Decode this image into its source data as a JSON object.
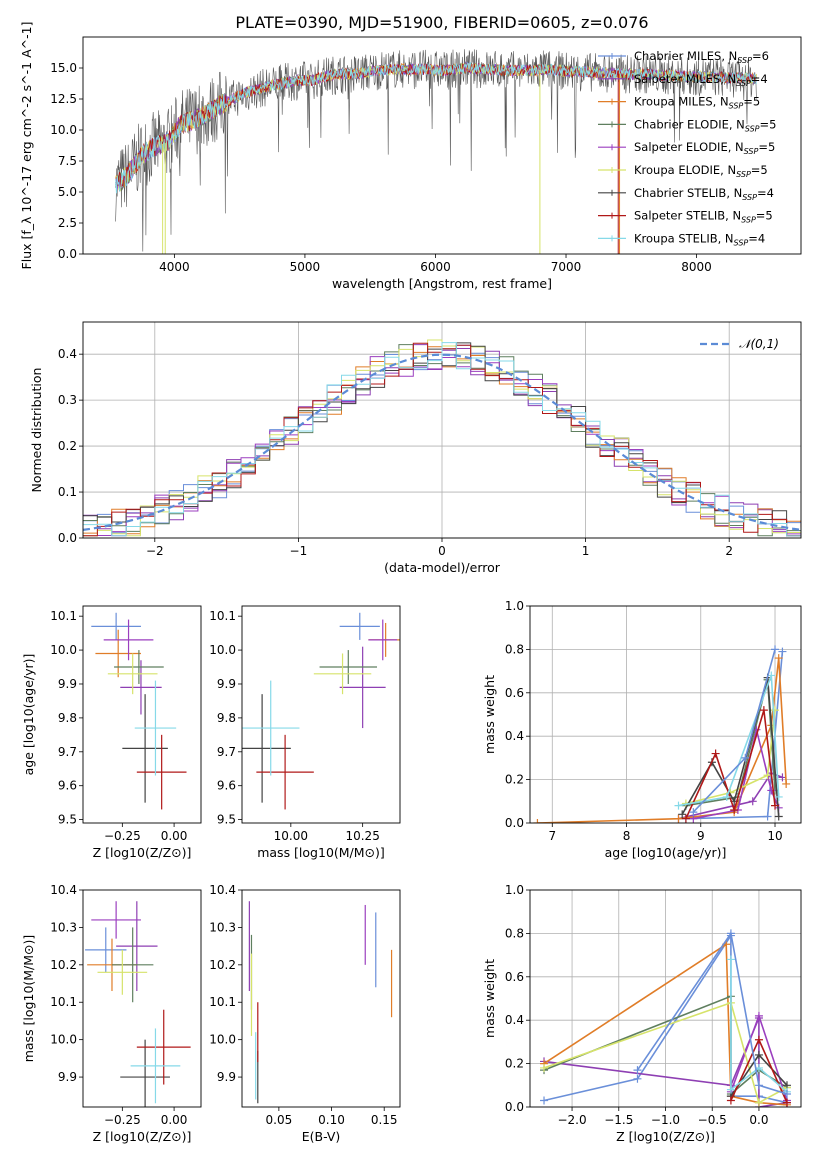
{
  "figure": {
    "title": "PLATE=0390, MJD=51900, FIBERID=0605, z=0.076"
  },
  "series": [
    {
      "name": "Chabrier MILES, N_SSP=6",
      "color": "#6a8fd9"
    },
    {
      "name": "Salpeter MILES, N_SSP=4",
      "color": "#8e3fb3"
    },
    {
      "name": "Kroupa MILES, N_SSP=5",
      "color": "#e07d28"
    },
    {
      "name": "Chabrier ELODIE, N_SSP=5",
      "color": "#5f7f5f"
    },
    {
      "name": "Salpeter ELODIE, N_SSP=5",
      "color": "#9b3fbf"
    },
    {
      "name": "Kroupa ELODIE, N_SSP=5",
      "color": "#d6e36a"
    },
    {
      "name": "Chabrier STELIB, N_SSP=4",
      "color": "#444444"
    },
    {
      "name": "Salpeter STELIB, N_SSP=5",
      "color": "#b01818"
    },
    {
      "name": "Kroupa STELIB, N_SSP=4",
      "color": "#86d9e8"
    }
  ],
  "chart_data": [
    {
      "id": "spectrum",
      "type": "line",
      "xlabel": "wavelength [Angstrom, rest frame]",
      "ylabel": "Flux [f_λ 10^-17 erg cm^-2 s^-1 A^-1]",
      "xlim": [
        3300,
        8800
      ],
      "ylim": [
        0,
        17.5
      ],
      "xticks": [
        4000,
        5000,
        6000,
        7000,
        8000
      ],
      "yticks": [
        0.0,
        2.5,
        5.0,
        7.5,
        10.0,
        12.5,
        15.0
      ],
      "grid": false,
      "legend": "right",
      "x": [
        3550,
        3650,
        3750,
        3850,
        3950,
        4050,
        4150,
        4250,
        4350,
        4450,
        4550,
        4650,
        4750,
        4850,
        4950,
        5050,
        5150,
        5250,
        5350,
        5450,
        5550,
        5650,
        5750,
        5850,
        5950,
        6050,
        6150,
        6250,
        6350,
        6450,
        6550,
        6650,
        6750,
        6850,
        6950,
        7050,
        7150,
        7250,
        7350,
        7450,
        7550,
        7650,
        7750,
        7850,
        7950,
        8050,
        8150,
        8250,
        8350,
        8450
      ],
      "y": [
        5.5,
        6.5,
        8.0,
        8.7,
        9.0,
        10.5,
        10.8,
        11.3,
        12.0,
        12.5,
        13.0,
        13.3,
        13.6,
        13.8,
        14.0,
        14.0,
        14.3,
        14.5,
        14.5,
        14.6,
        14.8,
        14.9,
        14.9,
        14.9,
        14.9,
        14.8,
        14.9,
        15.0,
        14.9,
        14.9,
        14.8,
        14.8,
        14.8,
        14.9,
        14.8,
        14.7,
        14.7,
        14.6,
        14.6,
        14.5,
        14.5,
        14.5,
        14.4,
        14.4,
        14.3,
        14.3,
        14.3,
        14.2,
        14.2,
        14.1
      ]
    },
    {
      "id": "residuals",
      "type": "line",
      "xlabel": "(data-model)/error",
      "ylabel": "Normed distribution",
      "xlim": [
        -2.5,
        2.5
      ],
      "ylim": [
        0,
        0.47
      ],
      "xticks": [
        -2,
        -1,
        0,
        1,
        2
      ],
      "yticks": [
        0.0,
        0.1,
        0.2,
        0.3,
        0.4
      ],
      "grid": true,
      "legend": "top-right",
      "reference": {
        "name": "𝒩(0,1)",
        "mean": 0,
        "sigma": 1,
        "color": "#5b8bd6"
      }
    },
    {
      "id": "age-Z",
      "type": "scatter",
      "xlabel": "Z [log10(Z/Z⊙)]",
      "ylabel": "age [log10(age/yr)]",
      "xlim": [
        -0.44,
        0.13
      ],
      "ylim": [
        9.49,
        10.13
      ],
      "xticks": [
        -0.25,
        0.0
      ],
      "yticks": [
        9.5,
        9.6,
        9.7,
        9.8,
        9.9,
        10.0,
        10.1
      ],
      "points": [
        {
          "x": -0.28,
          "y": 10.07,
          "xerr": 0.12,
          "yerr": 0.04
        },
        {
          "x": -0.16,
          "y": 9.89,
          "xerr": 0.1,
          "yerr": 0.08
        },
        {
          "x": -0.27,
          "y": 9.99,
          "xerr": 0.11,
          "yerr": 0.07
        },
        {
          "x": -0.17,
          "y": 9.95,
          "xerr": 0.12,
          "yerr": 0.05
        },
        {
          "x": -0.22,
          "y": 10.03,
          "xerr": 0.12,
          "yerr": 0.06
        },
        {
          "x": -0.2,
          "y": 9.93,
          "xerr": 0.12,
          "yerr": 0.06
        },
        {
          "x": -0.14,
          "y": 9.71,
          "xerr": 0.11,
          "yerr": 0.16
        },
        {
          "x": -0.06,
          "y": 9.64,
          "xerr": 0.12,
          "yerr": 0.11
        },
        {
          "x": -0.09,
          "y": 9.77,
          "xerr": 0.1,
          "yerr": 0.14
        }
      ]
    },
    {
      "id": "age-mass",
      "type": "scatter",
      "xlabel": "mass [log10(M/M⊙)]",
      "ylabel": "",
      "xlim": [
        9.83,
        10.38
      ],
      "ylim": [
        9.49,
        10.13
      ],
      "xticks": [
        10.0,
        10.25
      ],
      "yticks": [
        9.5,
        9.6,
        9.7,
        9.8,
        9.9,
        10.0,
        10.1
      ],
      "points": [
        {
          "x": 10.24,
          "y": 10.07,
          "xerr": 0.07,
          "yerr": 0.04
        },
        {
          "x": 10.25,
          "y": 9.89,
          "xerr": 0.08,
          "yerr": 0.12
        },
        {
          "x": 10.33,
          "y": 10.03,
          "xerr": 0.06,
          "yerr": 0.05
        },
        {
          "x": 10.2,
          "y": 9.95,
          "xerr": 0.1,
          "yerr": 0.05
        },
        {
          "x": 10.32,
          "y": 10.03,
          "xerr": 0.05,
          "yerr": 0.06
        },
        {
          "x": 10.18,
          "y": 9.93,
          "xerr": 0.1,
          "yerr": 0.06
        },
        {
          "x": 9.9,
          "y": 9.71,
          "xerr": 0.1,
          "yerr": 0.16
        },
        {
          "x": 9.98,
          "y": 9.64,
          "xerr": 0.1,
          "yerr": 0.11
        },
        {
          "x": 9.93,
          "y": 9.77,
          "xerr": 0.1,
          "yerr": 0.14
        }
      ]
    },
    {
      "id": "weight-age",
      "type": "line",
      "xlabel": "age [log10(age/yr)]",
      "ylabel": "mass weight",
      "xlim": [
        6.7,
        10.35
      ],
      "ylim": [
        0.0,
        1.0
      ],
      "xticks": [
        7,
        8,
        9,
        10
      ],
      "yticks": [
        0.0,
        0.2,
        0.4,
        0.6,
        0.8,
        1.0
      ],
      "grid": true,
      "lines": [
        {
          "x": [
            8.8,
            9.9,
            10.1
          ],
          "y": [
            0.02,
            0.03,
            0.79
          ]
        },
        {
          "x": [
            8.7,
            9.7,
            9.95,
            10.1
          ],
          "y": [
            0.02,
            0.1,
            0.23,
            0.21
          ]
        },
        {
          "x": [
            6.8,
            8.7,
            9.45,
            9.95,
            10.05,
            10.15
          ],
          "y": [
            0.0,
            0.02,
            0.05,
            0.45,
            0.76,
            0.18
          ]
        },
        {
          "x": [
            8.8,
            9.5,
            9.9,
            10.0
          ],
          "y": [
            0.08,
            0.12,
            0.66,
            0.15
          ]
        },
        {
          "x": [
            8.9,
            9.5,
            9.75,
            9.95,
            10.05
          ],
          "y": [
            0.02,
            0.06,
            0.43,
            0.15,
            0.07
          ]
        },
        {
          "x": [
            8.8,
            9.4,
            9.9,
            10.0
          ],
          "y": [
            0.09,
            0.14,
            0.22,
            0.52
          ]
        },
        {
          "x": [
            8.75,
            9.15,
            9.45,
            9.9,
            10.05
          ],
          "y": [
            0.04,
            0.28,
            0.1,
            0.67,
            0.03
          ]
        },
        {
          "x": [
            8.8,
            9.2,
            9.45,
            9.85,
            10.0
          ],
          "y": [
            0.02,
            0.32,
            0.06,
            0.52,
            0.08
          ]
        },
        {
          "x": [
            8.7,
            9.35,
            9.95,
            10.05
          ],
          "y": [
            0.08,
            0.12,
            0.68,
            0.12
          ]
        },
        {
          "x": [
            8.9,
            9.6,
            10.0
          ],
          "y": [
            0.05,
            0.3,
            0.8
          ]
        }
      ]
    },
    {
      "id": "mass-Z",
      "type": "scatter",
      "xlabel": "Z [log10(Z/Z⊙)]",
      "ylabel": "mass [log10(M/M⊙)]",
      "xlim": [
        -0.44,
        0.13
      ],
      "ylim": [
        9.82,
        10.4
      ],
      "xticks": [
        -0.25,
        0.0
      ],
      "yticks": [
        9.9,
        10.0,
        10.1,
        10.2,
        10.3,
        10.4
      ],
      "points": [
        {
          "x": -0.33,
          "y": 10.24,
          "xerr": 0.1,
          "yerr": 0.06
        },
        {
          "x": -0.18,
          "y": 10.25,
          "xerr": 0.1,
          "yerr": 0.12
        },
        {
          "x": -0.3,
          "y": 10.2,
          "xerr": 0.12,
          "yerr": 0.07
        },
        {
          "x": -0.2,
          "y": 10.2,
          "xerr": 0.1,
          "yerr": 0.1
        },
        {
          "x": -0.28,
          "y": 10.32,
          "xerr": 0.12,
          "yerr": 0.05
        },
        {
          "x": -0.25,
          "y": 10.18,
          "xerr": 0.12,
          "yerr": 0.06
        },
        {
          "x": -0.14,
          "y": 9.9,
          "xerr": 0.12,
          "yerr": 0.1
        },
        {
          "x": -0.05,
          "y": 9.98,
          "xerr": 0.13,
          "yerr": 0.1
        },
        {
          "x": -0.09,
          "y": 9.93,
          "xerr": 0.12,
          "yerr": 0.1
        }
      ]
    },
    {
      "id": "mass-ebv",
      "type": "scatter",
      "xlabel": "E(B-V)",
      "ylabel": "",
      "xlim": [
        0.015,
        0.165
      ],
      "ylim": [
        9.82,
        10.4
      ],
      "xticks": [
        0.05,
        0.1,
        0.15
      ],
      "yticks": [
        9.9,
        10.0,
        10.1,
        10.2,
        10.3,
        10.4
      ],
      "points": [
        {
          "x": 0.142,
          "y": 10.24,
          "yerr": 0.1
        },
        {
          "x": 0.022,
          "y": 10.25,
          "yerr": 0.12
        },
        {
          "x": 0.157,
          "y": 10.15,
          "yerr": 0.09
        },
        {
          "x": 0.024,
          "y": 10.18,
          "yerr": 0.1
        },
        {
          "x": 0.132,
          "y": 10.28,
          "yerr": 0.08
        },
        {
          "x": 0.024,
          "y": 10.12,
          "yerr": 0.11
        },
        {
          "x": 0.03,
          "y": 9.9,
          "yerr": 0.07
        },
        {
          "x": 0.03,
          "y": 10.02,
          "yerr": 0.08
        },
        {
          "x": 0.028,
          "y": 9.93,
          "yerr": 0.09
        }
      ]
    },
    {
      "id": "weight-Z",
      "type": "line",
      "xlabel": "Z [log10(Z/Z⊙)]",
      "ylabel": "mass weight",
      "xlim": [
        -2.45,
        0.45
      ],
      "ylim": [
        0.0,
        1.0
      ],
      "xticks": [
        -2.0,
        -1.5,
        -1.0,
        -0.5,
        0.0
      ],
      "yticks": [
        0.0,
        0.2,
        0.4,
        0.6,
        0.8,
        1.0
      ],
      "grid": true,
      "lines": [
        {
          "x": [
            -2.3,
            -1.3,
            -0.3,
            -0.3,
            0.0,
            0.3
          ],
          "y": [
            0.03,
            0.13,
            0.79,
            0.05,
            0.05,
            0.02
          ]
        },
        {
          "x": [
            -2.3,
            -0.3,
            0.0,
            0.0,
            0.3
          ],
          "y": [
            0.21,
            0.1,
            0.41,
            0.0,
            0.02
          ]
        },
        {
          "x": [
            -2.3,
            -0.35,
            -0.3,
            0.0,
            0.3
          ],
          "y": [
            0.2,
            0.75,
            0.05,
            0.02,
            0.01
          ]
        },
        {
          "x": [
            -2.3,
            -0.3,
            -0.3,
            0.0,
            0.3
          ],
          "y": [
            0.17,
            0.51,
            0.06,
            0.17,
            0.09
          ]
        },
        {
          "x": [
            -0.3,
            0.0,
            0.3
          ],
          "y": [
            0.07,
            0.42,
            0.03
          ]
        },
        {
          "x": [
            -2.3,
            -0.3,
            0.0,
            0.3
          ],
          "y": [
            0.18,
            0.48,
            0.02,
            0.09
          ]
        },
        {
          "x": [
            -0.3,
            0.0,
            0.3
          ],
          "y": [
            0.05,
            0.24,
            0.1
          ]
        },
        {
          "x": [
            -0.3,
            0.0,
            0.3
          ],
          "y": [
            0.03,
            0.31,
            0.02
          ]
        },
        {
          "x": [
            -0.3,
            -0.3,
            0.0,
            0.3
          ],
          "y": [
            0.68,
            0.08,
            0.18,
            0.07
          ]
        },
        {
          "x": [
            -1.3,
            -0.3,
            0.0,
            0.3
          ],
          "y": [
            0.17,
            0.8,
            0.1,
            0.06
          ]
        }
      ]
    }
  ]
}
